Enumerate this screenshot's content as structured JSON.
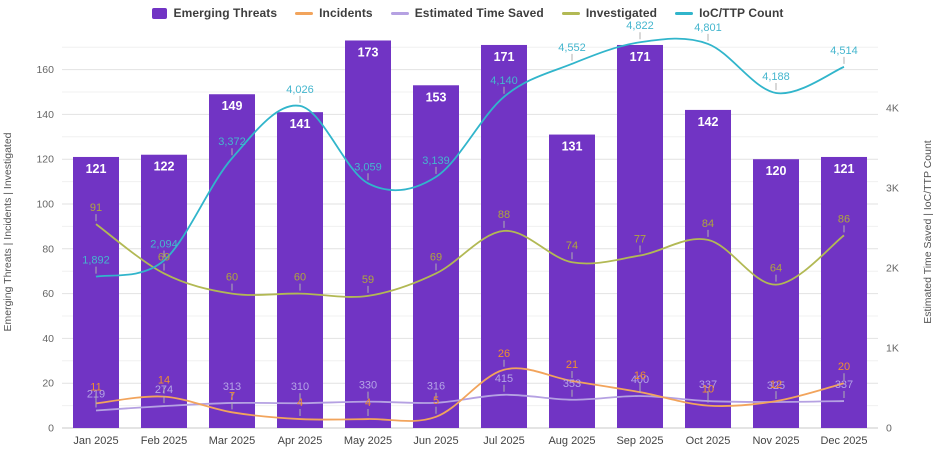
{
  "chart_data": {
    "type": "bar-line-combo",
    "categories": [
      "Jan 2025",
      "Feb 2025",
      "Mar 2025",
      "Apr 2025",
      "May 2025",
      "Jun 2025",
      "Jul 2025",
      "Aug 2025",
      "Sep 2025",
      "Oct 2025",
      "Nov 2025",
      "Dec 2025"
    ],
    "series": [
      {
        "name": "Emerging Threats",
        "type": "bar",
        "axis": "left",
        "color": "#7134c4",
        "label_color": "#ffffff",
        "values": [
          121,
          122,
          149,
          141,
          173,
          153,
          171,
          131,
          171,
          142,
          120,
          121
        ]
      },
      {
        "name": "Incidents",
        "type": "line",
        "axis": "left",
        "color": "#f2a45c",
        "label_color": "#ef8f2f",
        "values": [
          11,
          14,
          7,
          4,
          4,
          5,
          26,
          21,
          16,
          10,
          12,
          20
        ]
      },
      {
        "name": "Estimated Time Saved",
        "type": "line",
        "axis": "right",
        "color": "#b5a1e2",
        "label_color": "#b5a5e6",
        "values": [
          219,
          274,
          313,
          310,
          330,
          316,
          415,
          353,
          400,
          337,
          325,
          337
        ]
      },
      {
        "name": "Investigated",
        "type": "line",
        "axis": "left",
        "color": "#b2b954",
        "label_color": "#b0a63c",
        "values": [
          91,
          69,
          60,
          60,
          59,
          69,
          88,
          74,
          77,
          84,
          64,
          86
        ]
      },
      {
        "name": "IoC/TTP Count",
        "type": "line",
        "axis": "right",
        "color": "#31b5cb",
        "label_color": "#45b6ce",
        "values": [
          1892,
          2094,
          3372,
          4026,
          3059,
          3139,
          4140,
          4552,
          4822,
          4801,
          4188,
          4514
        ]
      }
    ],
    "left_axis": {
      "label": "Emerging Threats | Incidents | Investigated",
      "ticks": [
        0,
        20,
        40,
        60,
        80,
        100,
        120,
        140,
        160
      ],
      "max": 175,
      "minor_step": 10
    },
    "right_axis": {
      "label": "Estimated Time Saved | IoC/TTP Count",
      "ticks": [
        "0",
        "1K",
        "2K",
        "3K",
        "4K"
      ],
      "tick_values": [
        0,
        1000,
        2000,
        3000,
        4000
      ],
      "max": 4900,
      "minor_step": 500
    },
    "grid": true,
    "legend_position": "top"
  }
}
